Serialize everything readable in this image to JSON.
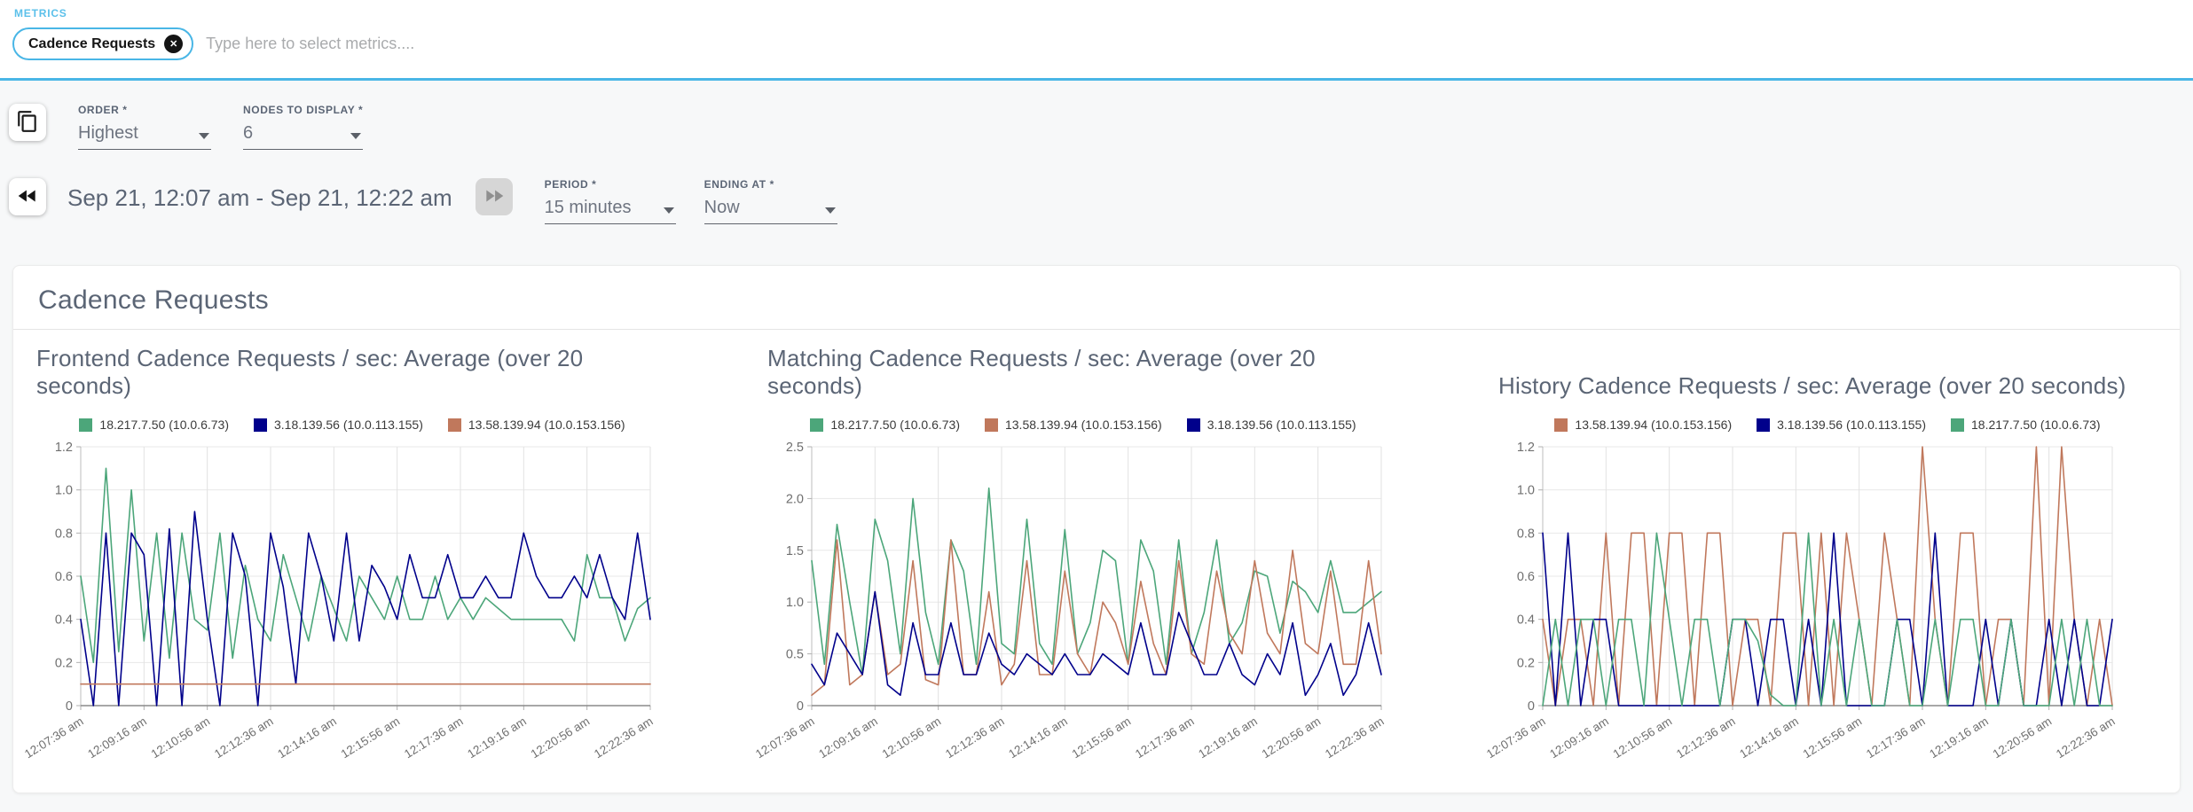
{
  "metrics": {
    "label": "METRICS",
    "chip": {
      "text": "Cadence Requests",
      "remove_glyph": "✕"
    },
    "placeholder": "Type here to select metrics...."
  },
  "controls": {
    "order": {
      "label": "ORDER *",
      "value": "Highest"
    },
    "nodes_to_display": {
      "label": "NODES TO DISPLAY *",
      "value": "6"
    },
    "date_range": "Sep 21, 12:07 am - Sep 21, 12:22 am",
    "period": {
      "label": "PERIOD *",
      "value": "15 minutes"
    },
    "ending_at": {
      "label": "ENDING AT *",
      "value": "Now"
    }
  },
  "panel": {
    "title": "Cadence Requests"
  },
  "colors": {
    "accent": "#49b6e6",
    "green": "#4ca67a",
    "navy": "#00008b",
    "salmon": "#c0785c"
  },
  "chart_data": [
    {
      "type": "line",
      "title": "Frontend Cadence Requests / sec: Average (over 20 seconds)",
      "x_labels": [
        "12:07:36 am",
        "12:09:16 am",
        "12:10:56 am",
        "12:12:36 am",
        "12:14:16 am",
        "12:15:56 am",
        "12:17:36 am",
        "12:19:16 am",
        "12:20:56 am",
        "12:22:36 am"
      ],
      "label_every": 5,
      "ylim": [
        0,
        1.2
      ],
      "yticks": [
        0,
        0.2,
        0.4,
        0.6,
        0.8,
        1.0,
        1.2
      ],
      "ytick_labels": [
        "0",
        "0.2",
        "0.4",
        "0.6",
        "0.8",
        "1.0",
        "1.2"
      ],
      "grid": true,
      "legend_position": "top",
      "series": [
        {
          "name": "18.217.7.50 (10.0.6.73)",
          "color": "#4ca67a",
          "values": [
            0.6,
            0.2,
            1.1,
            0.25,
            1.0,
            0.3,
            0.8,
            0.22,
            0.8,
            0.4,
            0.35,
            0.8,
            0.22,
            0.65,
            0.4,
            0.3,
            0.7,
            0.5,
            0.3,
            0.6,
            0.45,
            0.3,
            0.6,
            0.5,
            0.4,
            0.6,
            0.4,
            0.4,
            0.6,
            0.4,
            0.5,
            0.4,
            0.5,
            0.45,
            0.4,
            0.4,
            0.4,
            0.4,
            0.4,
            0.3,
            0.7,
            0.5,
            0.5,
            0.3,
            0.45,
            0.5
          ]
        },
        {
          "name": "3.18.139.56 (10.0.113.155)",
          "color": "#00008b",
          "values": [
            0.4,
            0.0,
            0.8,
            0.0,
            0.8,
            0.7,
            0.0,
            0.82,
            0.0,
            0.9,
            0.4,
            0.0,
            0.8,
            0.6,
            0.0,
            0.8,
            0.55,
            0.1,
            0.8,
            0.6,
            0.3,
            0.8,
            0.3,
            0.65,
            0.55,
            0.4,
            0.7,
            0.5,
            0.5,
            0.7,
            0.5,
            0.5,
            0.6,
            0.5,
            0.5,
            0.8,
            0.6,
            0.5,
            0.5,
            0.6,
            0.5,
            0.7,
            0.5,
            0.4,
            0.8,
            0.4
          ]
        },
        {
          "name": "13.58.139.94 (10.0.153.156)",
          "color": "#c0785c",
          "values": [
            0.1,
            0.1,
            0.1,
            0.1,
            0.1,
            0.1,
            0.1,
            0.1,
            0.1,
            0.1,
            0.1,
            0.1,
            0.1,
            0.1,
            0.1,
            0.1,
            0.1,
            0.1,
            0.1,
            0.1,
            0.1,
            0.1,
            0.1,
            0.1,
            0.1,
            0.1,
            0.1,
            0.1,
            0.1,
            0.1,
            0.1,
            0.1,
            0.1,
            0.1,
            0.1,
            0.1,
            0.1,
            0.1,
            0.1,
            0.1,
            0.1,
            0.1,
            0.1,
            0.1,
            0.1,
            0.1
          ]
        }
      ]
    },
    {
      "type": "line",
      "title": "Matching Cadence Requests / sec: Average (over 20 seconds)",
      "x_labels": [
        "12:07:36 am",
        "12:09:16 am",
        "12:10:56 am",
        "12:12:36 am",
        "12:14:16 am",
        "12:15:56 am",
        "12:17:36 am",
        "12:19:16 am",
        "12:20:56 am",
        "12:22:36 am"
      ],
      "label_every": 5,
      "ylim": [
        0,
        2.5
      ],
      "yticks": [
        0,
        0.5,
        1.0,
        1.5,
        2.0,
        2.5
      ],
      "ytick_labels": [
        "0",
        "0.5",
        "1.0",
        "1.5",
        "2.0",
        "2.5"
      ],
      "grid": true,
      "legend_position": "top",
      "series": [
        {
          "name": "18.217.7.50 (10.0.6.73)",
          "color": "#4ca67a",
          "values": [
            1.4,
            0.4,
            1.75,
            1.0,
            0.3,
            1.8,
            1.4,
            0.5,
            2.0,
            0.9,
            0.4,
            1.6,
            1.3,
            0.4,
            2.1,
            0.6,
            0.5,
            1.8,
            0.6,
            0.4,
            1.7,
            0.5,
            0.8,
            1.5,
            1.4,
            0.4,
            1.6,
            1.3,
            0.4,
            1.6,
            0.5,
            0.9,
            1.6,
            0.6,
            0.8,
            1.3,
            1.25,
            0.7,
            1.2,
            1.1,
            0.9,
            1.4,
            0.9,
            0.9,
            1.0,
            1.1
          ]
        },
        {
          "name": "13.58.139.94 (10.0.153.156)",
          "color": "#c0785c",
          "values": [
            0.1,
            0.2,
            1.6,
            0.2,
            0.3,
            1.1,
            0.3,
            0.4,
            1.4,
            0.25,
            0.2,
            1.6,
            0.3,
            0.3,
            1.1,
            0.2,
            0.4,
            1.4,
            0.3,
            0.3,
            1.3,
            0.5,
            0.3,
            1.0,
            0.8,
            0.4,
            1.2,
            0.6,
            0.3,
            1.4,
            0.5,
            0.4,
            1.3,
            0.7,
            0.5,
            1.4,
            0.7,
            0.5,
            1.5,
            0.6,
            0.5,
            1.3,
            0.4,
            0.4,
            1.4,
            0.5
          ]
        },
        {
          "name": "3.18.139.56 (10.0.113.155)",
          "color": "#00008b",
          "values": [
            0.4,
            0.2,
            0.7,
            0.5,
            0.3,
            1.1,
            0.2,
            0.1,
            0.8,
            0.3,
            0.3,
            0.8,
            0.3,
            0.3,
            0.7,
            0.4,
            0.3,
            0.5,
            0.4,
            0.3,
            0.5,
            0.3,
            0.3,
            0.5,
            0.4,
            0.3,
            0.8,
            0.3,
            0.3,
            0.9,
            0.6,
            0.3,
            0.3,
            0.6,
            0.3,
            0.2,
            0.5,
            0.3,
            0.8,
            0.1,
            0.3,
            0.6,
            0.1,
            0.3,
            0.8,
            0.3
          ]
        }
      ]
    },
    {
      "type": "line",
      "title": "History Cadence Requests / sec: Average (over 20 seconds)",
      "x_labels": [
        "12:07:36 am",
        "12:09:16 am",
        "12:10:56 am",
        "12:12:36 am",
        "12:14:16 am",
        "12:15:56 am",
        "12:17:36 am",
        "12:19:16 am",
        "12:20:56 am",
        "12:22:36 am"
      ],
      "label_every": 5,
      "ylim": [
        0,
        1.2
      ],
      "yticks": [
        0,
        0.2,
        0.4,
        0.6,
        0.8,
        1.0,
        1.2
      ],
      "ytick_labels": [
        "0",
        "0.2",
        "0.4",
        "0.6",
        "0.8",
        "1.0",
        "1.2"
      ],
      "grid": true,
      "legend_position": "top",
      "series": [
        {
          "name": "13.58.139.94 (10.0.153.156)",
          "color": "#c0785c",
          "values": [
            0.4,
            0,
            0.4,
            0.4,
            0,
            0.8,
            0,
            0.8,
            0.8,
            0,
            0.8,
            0.8,
            0,
            0.8,
            0.8,
            0,
            0.4,
            0.4,
            0,
            0.8,
            0.8,
            0,
            0.8,
            0,
            0.8,
            0.4,
            0,
            0.8,
            0.4,
            0,
            1.2,
            0.4,
            0,
            0.8,
            0.8,
            0,
            0.4,
            0.4,
            0,
            1.2,
            0,
            1.2,
            0.4,
            0,
            0.4,
            0
          ]
        },
        {
          "name": "3.18.139.56 (10.0.113.155)",
          "color": "#00008b",
          "values": [
            0.8,
            0,
            0.8,
            0,
            0.4,
            0.4,
            0,
            0,
            0,
            0,
            0,
            0,
            0,
            0,
            0,
            0.4,
            0.4,
            0,
            0.4,
            0.4,
            0,
            0.4,
            0,
            0.8,
            0,
            0,
            0,
            0,
            0.4,
            0.4,
            0,
            0.8,
            0,
            0,
            0,
            0.4,
            0,
            0.4,
            0,
            0,
            0.4,
            0,
            0.4,
            0,
            0,
            0.4
          ]
        },
        {
          "name": "18.217.7.50 (10.0.6.73)",
          "color": "#4ca67a",
          "values": [
            0,
            0.4,
            0,
            0.4,
            0.4,
            0,
            0.4,
            0.4,
            0,
            0.8,
            0.4,
            0,
            0.4,
            0.4,
            0,
            0.4,
            0.4,
            0.3,
            0.05,
            0,
            0,
            0.8,
            0,
            0.4,
            0,
            0.4,
            0,
            0,
            0.4,
            0,
            0,
            0.4,
            0,
            0.4,
            0.4,
            0,
            0,
            0.4,
            0,
            0,
            0,
            0.4,
            0,
            0.4,
            0,
            0
          ]
        }
      ]
    }
  ]
}
